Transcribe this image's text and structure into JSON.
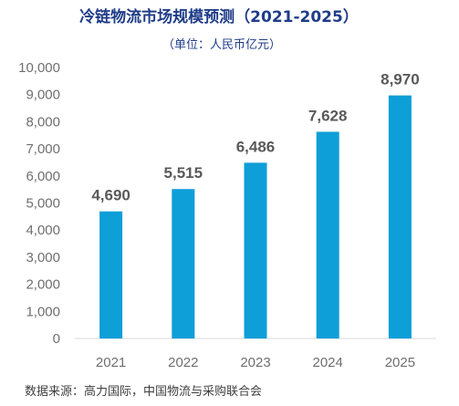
{
  "chart_data": {
    "type": "bar",
    "title": "冷链物流市场规模预测（2021-2025）",
    "subtitle": "（单位：人民币亿元）",
    "categories": [
      "2021",
      "2022",
      "2023",
      "2024",
      "2025"
    ],
    "values": [
      4690,
      5515,
      6486,
      7628,
      8970
    ],
    "data_labels": [
      "4,690",
      "5,515",
      "6,486",
      "7,628",
      "8,970"
    ],
    "ylim": [
      0,
      10000
    ],
    "yticks": [
      "0",
      "1,000",
      "2,000",
      "3,000",
      "4,000",
      "5,000",
      "6,000",
      "7,000",
      "8,000",
      "9,000",
      "10,000"
    ],
    "grid": false,
    "legend": "none",
    "bar_color": "#0e9ed8",
    "title_color": "#1f3c88",
    "source": "数据来源：高力国际，中国物流与采购联合会"
  }
}
